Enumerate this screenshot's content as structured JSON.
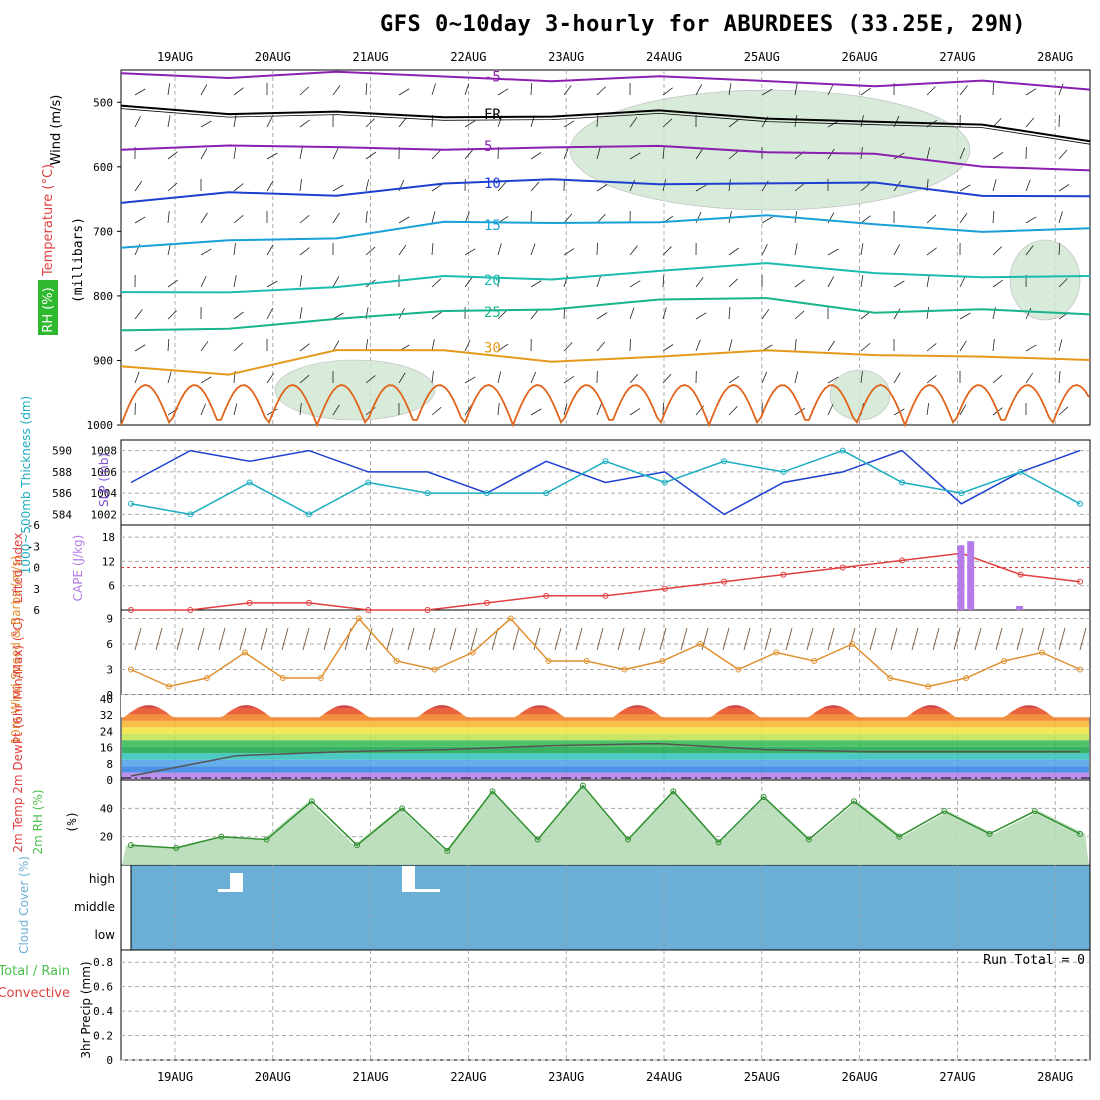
{
  "title": "GFS 0~10day 3-hourly for ABURDEES (33.25E, 29N)",
  "days": [
    "19AUG",
    "20AUG",
    "21AUG",
    "22AUG",
    "23AUG",
    "24AUG",
    "25AUG",
    "26AUG",
    "27AUG",
    "28AUG"
  ],
  "colors": {
    "purple": "#8a1fb0",
    "blue": "#1c3fd0",
    "lightblue": "#1aa0d8",
    "teal": "#1bbcb0",
    "green": "#18b48a",
    "orange": "#e59a1b",
    "darkorange": "#e0641b",
    "rhfill": "#cfe6d2",
    "slp": "#1c3fd0",
    "thick": "#1aacc0",
    "lifted": "#e04040",
    "cape": "#b57be8",
    "wind": "#e09030",
    "cloud": "#6baed6",
    "rh2m": "#4bbf4b"
  },
  "chart_data": [
    {
      "type": "line",
      "name": "upper-air",
      "ylabel_wind": "Wind (m/s)",
      "ylabel_temp": "Temperature (°C)",
      "ylabel_rh": "RH (%)",
      "yunit": "(millibars)",
      "yticks": [
        "500",
        "600",
        "700",
        "800",
        "900",
        "1000"
      ],
      "ylim": [
        450,
        1000
      ],
      "contours": [
        {
          "label": "-5",
          "values": [
            455,
            457,
            458,
            460,
            462,
            465,
            467,
            470,
            472,
            480
          ],
          "color": "purple"
        },
        {
          "label": "FR",
          "values": [
            500,
            518,
            520,
            518,
            522,
            518,
            520,
            530,
            540,
            555
          ],
          "color": "black"
        },
        {
          "label": "5",
          "values": [
            568,
            572,
            570,
            568,
            575,
            568,
            572,
            585,
            600,
            600
          ],
          "color": "purple"
        },
        {
          "label": "10",
          "values": [
            655,
            645,
            640,
            625,
            625,
            622,
            625,
            630,
            640,
            645
          ],
          "color": "blue"
        },
        {
          "label": "15",
          "values": [
            730,
            715,
            705,
            690,
            688,
            680,
            680,
            690,
            695,
            700
          ],
          "color": "lightblue"
        },
        {
          "label": "20",
          "values": [
            800,
            790,
            785,
            775,
            770,
            760,
            755,
            760,
            770,
            775
          ],
          "color": "teal"
        },
        {
          "label": "25",
          "values": [
            855,
            845,
            840,
            825,
            815,
            810,
            805,
            820,
            825,
            830
          ],
          "color": "green"
        },
        {
          "label": "30",
          "values": [
            905,
            920,
            890,
            880,
            900,
            900,
            880,
            890,
            900,
            895
          ],
          "color": "orange"
        }
      ],
      "contour_labels": [
        "-5",
        "FR",
        "5",
        "10",
        "15",
        "20",
        "25",
        "30"
      ]
    },
    {
      "type": "line",
      "name": "slp-thickness",
      "ylabel_left": "1000~500mb Thickness (dm)",
      "ylabel_right": "SLP (mb)",
      "thickness_ticks": [
        "590",
        "588",
        "586",
        "584"
      ],
      "slp_ticks": [
        "1008",
        "1006",
        "1004",
        "1002"
      ],
      "slp": [
        1005,
        1008,
        1007,
        1008,
        1006,
        1006,
        1004,
        1007,
        1005,
        1006,
        1002,
        1005,
        1006,
        1008,
        1003,
        1006,
        1008
      ],
      "thickness": [
        585,
        584,
        587,
        584,
        587,
        586,
        586,
        586,
        589,
        587,
        589,
        588,
        590,
        587,
        586,
        588,
        585
      ]
    },
    {
      "type": "bar",
      "name": "lifted-cape",
      "ylabel_left": "Lifted Index",
      "ylabel_right": "CAPE (J/kg)",
      "li_ticks": [
        "-6",
        "-3",
        "0",
        "3",
        "6"
      ],
      "cape_ticks": [
        "18",
        "12",
        "6"
      ],
      "lifted_index": [
        6,
        6,
        5,
        5,
        6,
        6,
        5,
        4,
        4,
        3,
        2,
        1,
        0,
        -1,
        -2,
        1,
        2
      ],
      "cape_bars": [
        {
          "day": 27.0,
          "value": 16
        },
        {
          "day": 27.1,
          "value": 17
        },
        {
          "day": 27.6,
          "value": 1
        }
      ]
    },
    {
      "type": "line",
      "name": "wind10m",
      "ylabel": "10m Wind Speed & Barbs (m/s)",
      "yticks": [
        "9",
        "6",
        "3",
        "0"
      ],
      "speed": [
        3,
        1,
        2,
        5,
        2,
        2,
        9,
        4,
        3,
        5,
        9,
        4,
        4,
        3,
        4,
        6,
        3,
        5,
        4,
        6,
        2,
        1,
        2,
        4,
        5,
        3
      ]
    },
    {
      "type": "area",
      "name": "temp2m",
      "ylabel": "2m Temp 2m DewPt (6hr Min/Max) (°C)",
      "yticks": [
        "40",
        "32",
        "24",
        "16",
        "8",
        "0"
      ],
      "tmax": [
        36,
        38,
        38,
        39,
        38,
        38,
        38,
        38,
        38,
        38
      ],
      "tmin": [
        26,
        27,
        27,
        27,
        27,
        27,
        27,
        27,
        27,
        27
      ],
      "dewpt": [
        2,
        12,
        14,
        15,
        17,
        18,
        15,
        14,
        14,
        14
      ]
    },
    {
      "type": "area",
      "name": "rh2m",
      "ylabel": "2m RH (%)",
      "yticks": [
        "40",
        "20"
      ],
      "values": [
        14,
        12,
        20,
        18,
        45,
        14,
        40,
        10,
        52,
        18,
        56,
        18,
        52,
        16,
        48,
        18,
        45,
        20,
        38,
        22,
        38,
        22
      ]
    },
    {
      "type": "bar",
      "name": "cloud",
      "ylabel": "Cloud Cover (%)",
      "levels": [
        "high",
        "middle",
        "low"
      ]
    },
    {
      "type": "bar",
      "name": "precip",
      "ylabel": "3hr Precip (mm)",
      "legend_left": "Total / Rain",
      "legend_right": "Convective",
      "yticks": [
        "0.8",
        "0.6",
        "0.4",
        "0.2",
        "0"
      ],
      "run_total": "Run Total = 0"
    }
  ]
}
